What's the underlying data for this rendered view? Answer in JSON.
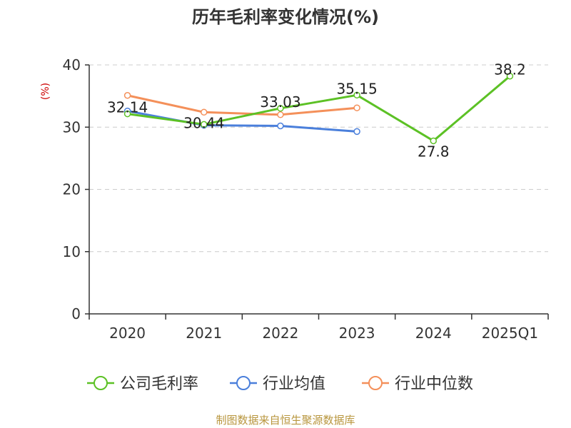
{
  "chart_data": {
    "type": "line",
    "title": "历年毛利率变化情况(%)",
    "ylabel": "(%)",
    "xlabel": "",
    "categories": [
      "2020",
      "2021",
      "2022",
      "2023",
      "2024",
      "2025Q1"
    ],
    "ylim": [
      0,
      40
    ],
    "yticks": [
      "0",
      "10",
      "20",
      "30",
      "40"
    ],
    "grid": true,
    "legend_position": "bottom",
    "series": [
      {
        "name": "公司毛利率",
        "color": "#5cc125",
        "values": [
          32.14,
          30.44,
          33.03,
          35.15,
          27.8,
          38.2
        ],
        "labels": [
          "32.14",
          "30.44",
          "33.03",
          "35.15",
          "27.8",
          "38.2"
        ]
      },
      {
        "name": "行业均值",
        "color": "#4a7fdb",
        "values": [
          32.6,
          30.3,
          30.2,
          29.3,
          null,
          null
        ]
      },
      {
        "name": "行业中位数",
        "color": "#f4905a",
        "values": [
          35.1,
          32.4,
          32.0,
          33.1,
          null,
          null
        ]
      }
    ]
  },
  "source": "制图数据来自恒生聚源数据库"
}
